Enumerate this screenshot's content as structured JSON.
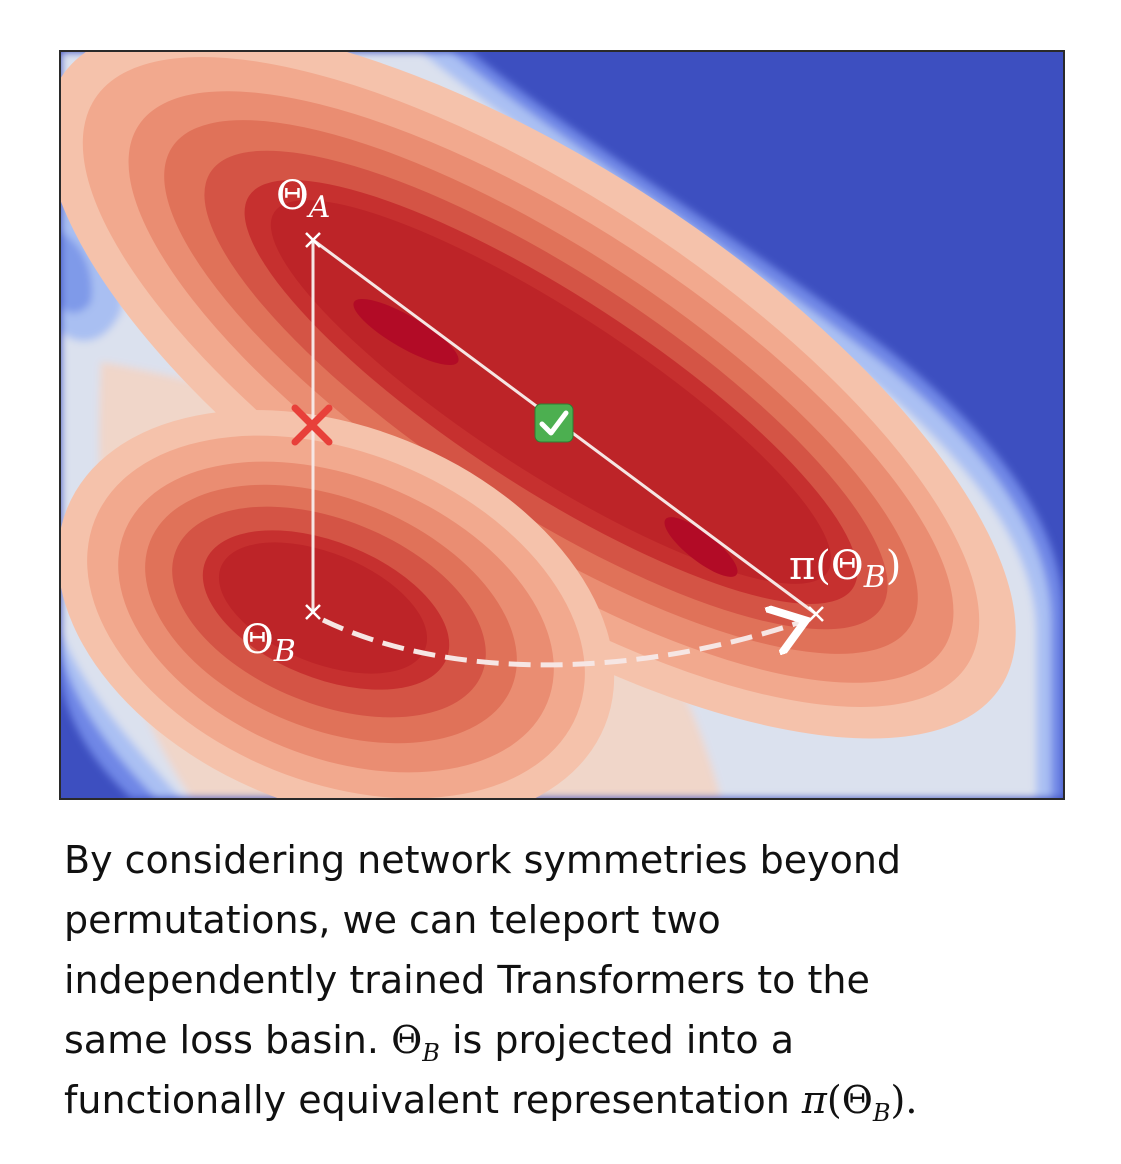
{
  "figure": {
    "labels": {
      "theta_a": {
        "main": "Θ",
        "sub": "A"
      },
      "theta_b": {
        "main": "Θ",
        "sub": "B"
      },
      "pi_theta_b": {
        "pre": "π(Θ",
        "sub": "B",
        "post": ")"
      }
    },
    "markers": {
      "fail": "✕",
      "success": "✓"
    },
    "colors": {
      "background_blue": "#3d4fc0",
      "contour_levels": [
        "#dbe1ee",
        "#f0d6c9",
        "#f5b8a0",
        "#ee9a7e",
        "#e47a60",
        "#d65a47",
        "#c72f30",
        "#bd2428",
        "#b20b26"
      ],
      "line_white": "#ffffff",
      "fail_red": "#e8403a",
      "success_green": "#4caf50"
    }
  },
  "caption": {
    "line1": "By considering network symmetries beyond",
    "line2": "permutations, we can teleport two",
    "line3": "independently trained Transformers to the",
    "line4_a": "same loss basin.",
    "theta": "Θ",
    "sub_b": "B",
    "line4_b": "is projected into a",
    "line5_a": "functionally equivalent representation",
    "pi": "π",
    "paren_open": "(",
    "paren_close": ").",
    "sub_b2": "B"
  }
}
